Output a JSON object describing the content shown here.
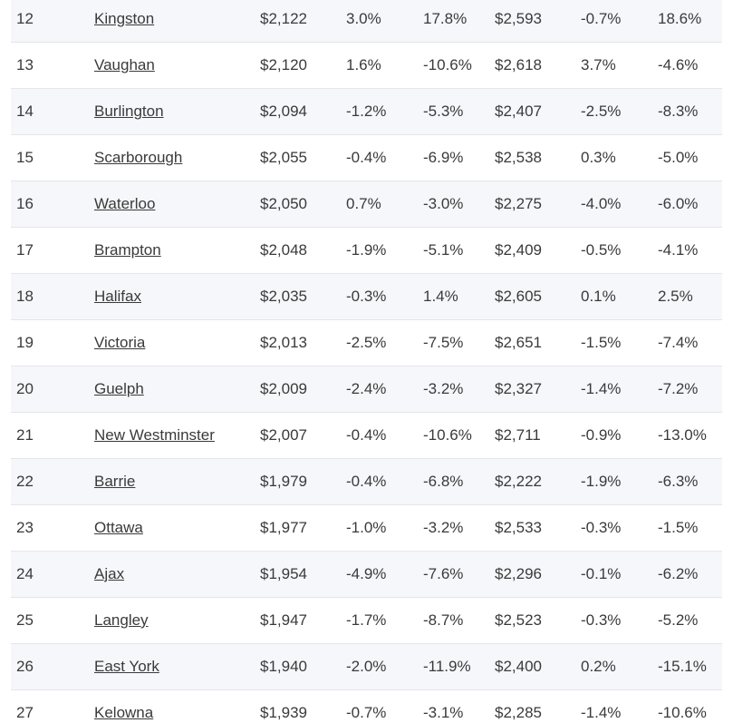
{
  "table": {
    "rows": [
      [
        "12",
        "Kingston",
        "$2,122",
        "3.0%",
        "17.8%",
        "$2,593",
        "-0.7%",
        "18.6%"
      ],
      [
        "13",
        "Vaughan",
        "$2,120",
        "1.6%",
        "-10.6%",
        "$2,618",
        "3.7%",
        "-4.6%"
      ],
      [
        "14",
        "Burlington",
        "$2,094",
        "-1.2%",
        "-5.3%",
        "$2,407",
        "-2.5%",
        "-8.3%"
      ],
      [
        "15",
        "Scarborough",
        "$2,055",
        "-0.4%",
        "-6.9%",
        "$2,538",
        "0.3%",
        "-5.0%"
      ],
      [
        "16",
        "Waterloo",
        "$2,050",
        "0.7%",
        "-3.0%",
        "$2,275",
        "-4.0%",
        "-6.0%"
      ],
      [
        "17",
        "Brampton",
        "$2,048",
        "-1.9%",
        "-5.1%",
        "$2,409",
        "-0.5%",
        "-4.1%"
      ],
      [
        "18",
        "Halifax",
        "$2,035",
        "-0.3%",
        "1.4%",
        "$2,605",
        "0.1%",
        "2.5%"
      ],
      [
        "19",
        "Victoria",
        "$2,013",
        "-2.5%",
        "-7.5%",
        "$2,651",
        "-1.5%",
        "-7.4%"
      ],
      [
        "20",
        "Guelph",
        "$2,009",
        "-2.4%",
        "-3.2%",
        "$2,327",
        "-1.4%",
        "-7.2%"
      ],
      [
        "21",
        "New Westminster",
        "$2,007",
        "-0.4%",
        "-10.6%",
        "$2,711",
        "-0.9%",
        "-13.0%"
      ],
      [
        "22",
        "Barrie",
        "$1,979",
        "-0.4%",
        "-6.8%",
        "$2,222",
        "-1.9%",
        "-6.3%"
      ],
      [
        "23",
        "Ottawa",
        "$1,977",
        "-1.0%",
        "-3.2%",
        "$2,533",
        "-0.3%",
        "-1.5%"
      ],
      [
        "24",
        "Ajax",
        "$1,954",
        "-4.9%",
        "-7.6%",
        "$2,296",
        "-0.1%",
        "-6.2%"
      ],
      [
        "25",
        "Langley",
        "$1,947",
        "-1.7%",
        "-8.7%",
        "$2,523",
        "-0.3%",
        "-5.2%"
      ],
      [
        "26",
        "East York",
        "$1,940",
        "-2.0%",
        "-11.9%",
        "$2,400",
        "0.2%",
        "-15.1%"
      ],
      [
        "27",
        "Kelowna",
        "$1,939",
        "-0.7%",
        "-3.1%",
        "$2,285",
        "-1.4%",
        "-10.6%"
      ]
    ]
  }
}
